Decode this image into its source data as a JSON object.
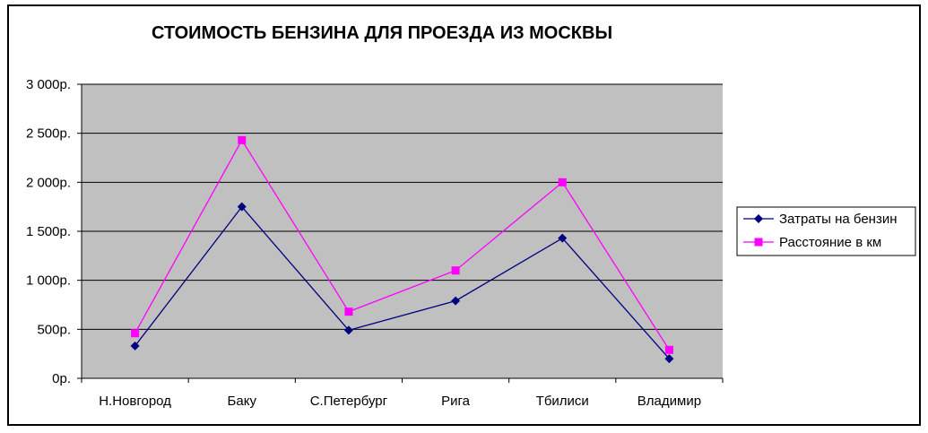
{
  "chart_data": {
    "type": "line",
    "title": "СТОИМОСТЬ БЕНЗИНА ДЛЯ ПРОЕЗДА ИЗ МОСКВЫ",
    "categories": [
      "Н.Новгород",
      "Баку",
      "С.Петербург",
      "Рига",
      "Тбилиси",
      "Владимир"
    ],
    "y_ticks": [
      "0р.",
      "500р.",
      "1 000р.",
      "1 500р.",
      "2 000р.",
      "2 500р.",
      "3 000р."
    ],
    "ylim": [
      0,
      3000
    ],
    "grid": true,
    "legend_position": "right",
    "plot_background": "#c0c0c0",
    "series": [
      {
        "name": "Затраты на бензин",
        "color": "#000080",
        "marker": "diamond",
        "values": [
          330,
          1750,
          490,
          790,
          1430,
          200
        ]
      },
      {
        "name": "Расстояние в км",
        "color": "#ff00ff",
        "marker": "square",
        "values": [
          460,
          2430,
          680,
          1100,
          2000,
          290
        ]
      }
    ]
  }
}
